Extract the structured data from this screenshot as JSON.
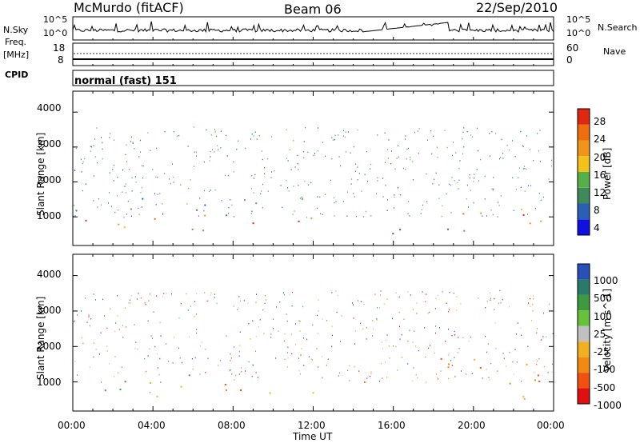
{
  "header": {
    "station": "McMurdo (fitACF)",
    "beam": "Beam 06",
    "date": "22/Sep/2010"
  },
  "left_labels": {
    "nsky": "N.Sky",
    "freq": "Freq.",
    "freq_unit": "[MHz]",
    "cpid": "CPID",
    "nsky_ticks": [
      "10^5",
      "10^0"
    ],
    "freq_ticks": [
      "18",
      "8"
    ]
  },
  "right_labels": {
    "nsearch": "N.Search",
    "nave": "Nave",
    "nsearch_ticks": [
      "10^5",
      "10^0"
    ],
    "nave_ticks": [
      "60",
      "0"
    ]
  },
  "cpid_text": "normal (fast) 151",
  "chart_data": [
    {
      "type": "heatmap",
      "panel": "power",
      "ylabel": "Slant Range [km]",
      "yticks": [
        "1000",
        "2000",
        "3000",
        "4000"
      ],
      "ylim": [
        180,
        4600
      ],
      "xlim": [
        0,
        24
      ],
      "colorbar_label": "Power [dB]",
      "colorbar_ticks": [
        "4",
        "8",
        "12",
        "16",
        "20",
        "24",
        "28"
      ],
      "colorbar_colors": [
        "#1010e0",
        "#2a5fb5",
        "#3f8a5a",
        "#55b04a",
        "#f2c21a",
        "#f19519",
        "#f06d10",
        "#e02810"
      ],
      "regions": [
        {
          "t0": 0.0,
          "t1": 7.0,
          "r0": 600,
          "r1": 1200,
          "level": "high"
        },
        {
          "t0": 7.0,
          "t1": 12.5,
          "r0": 650,
          "r1": 1100,
          "level": "high"
        },
        {
          "t0": 18.2,
          "t1": 24.0,
          "r0": 600,
          "r1": 1400,
          "level": "high"
        },
        {
          "t0": 0.0,
          "t1": 12.5,
          "r0": 1200,
          "r1": 1600,
          "level": "low"
        },
        {
          "t0": 15.5,
          "t1": 17.5,
          "r0": 300,
          "r1": 800,
          "level": "low"
        }
      ]
    },
    {
      "type": "heatmap",
      "panel": "velocity",
      "ylabel": "Slant Range [km]",
      "yticks": [
        "1000",
        "2000",
        "3000",
        "4000"
      ],
      "ylim": [
        180,
        4600
      ],
      "xlim": [
        0,
        24
      ],
      "xticks": [
        "00:00",
        "04:00",
        "08:00",
        "12:00",
        "16:00",
        "20:00",
        "00:00"
      ],
      "xlabel": "Time UT",
      "colorbar_label": "Velocity [m s^-1]",
      "colorbar_ticks": [
        "1000",
        "500",
        "100",
        "25",
        "-25",
        "-100",
        "-500",
        "-1000"
      ],
      "colorbar_colors": [
        "#2a4fb8",
        "#2a7a6a",
        "#3f9a3f",
        "#66c23a",
        "#c0c0c0",
        "#f0b020",
        "#f08a10",
        "#f05010",
        "#e01010"
      ],
      "regions": [
        {
          "t0": 0.0,
          "t1": 7.0,
          "r0": 600,
          "r1": 1300,
          "level": "mixed"
        },
        {
          "t0": 7.0,
          "t1": 12.5,
          "r0": 650,
          "r1": 1200,
          "level": "negative"
        },
        {
          "t0": 18.2,
          "t1": 24.0,
          "r0": 500,
          "r1": 1700,
          "level": "negative"
        }
      ]
    }
  ]
}
